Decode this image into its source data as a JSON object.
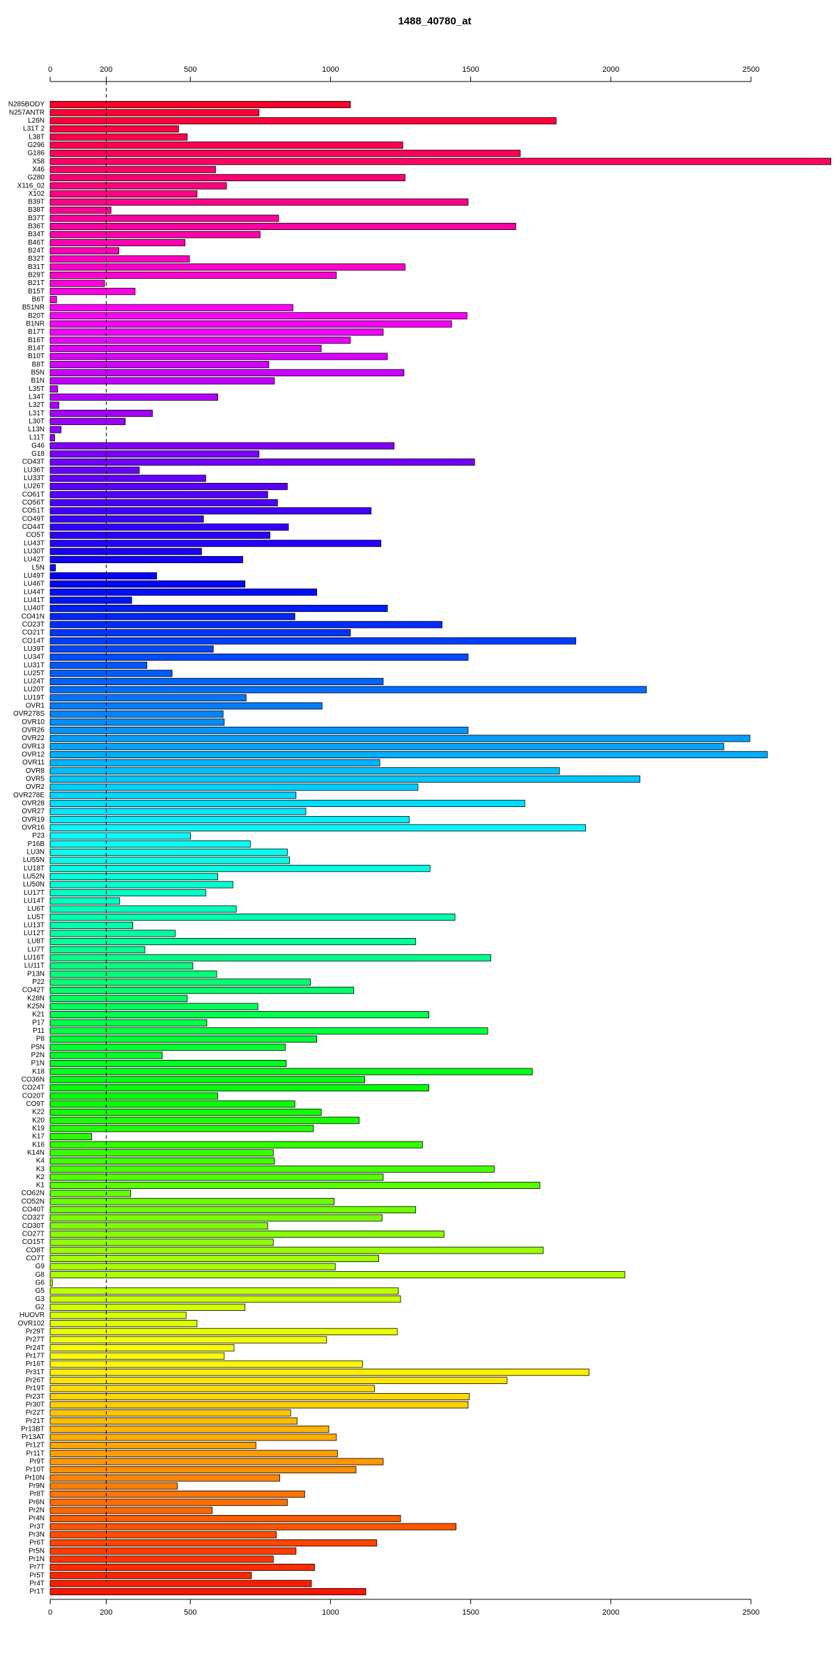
{
  "chart_data": {
    "type": "barh",
    "title": "1488_40780_at",
    "categories": [
      "N285BODY",
      "N257ANTR",
      "L26N",
      "L31T 2",
      "L38T",
      "G296",
      "G186",
      "X58",
      "X46",
      "G280",
      "X116_02",
      "X102",
      "B39T",
      "B38T",
      "B37T",
      "B36T",
      "B34T",
      "B46T",
      "B24T",
      "B32T",
      "B31T",
      "B29T",
      "B21T",
      "B15T",
      "B6T",
      "B51NR",
      "B20T",
      "B1NR",
      "B17T",
      "B16T",
      "B14T",
      "B10T",
      "B8T",
      "B5N",
      "B1N",
      "L35T",
      "L34T",
      "L32T",
      "L31T",
      "L30T",
      "L13N",
      "L11T",
      "G46",
      "G18",
      "CO43T",
      "LU36T",
      "LU33T",
      "LU26T",
      "CO61T",
      "CO56T",
      "CO51T",
      "CO49T",
      "CO44T",
      "CO5T",
      "LU43T",
      "LU30T",
      "LU42T",
      "L5N",
      "LU49T",
      "LU46T",
      "LU44T",
      "LU41T",
      "LU40T",
      "CO41N",
      "CO23T",
      "CO21T",
      "CO14T",
      "LU39T",
      "LU34T",
      "LU31T",
      "LU25T",
      "LU24T",
      "LU20T",
      "LU19T",
      "OVR1",
      "OVR278S",
      "OVR10",
      "OVR26",
      "OVR22",
      "OVR13",
      "OVR12",
      "OVR11",
      "OVR8",
      "OVR5",
      "OVR2",
      "OVR278E",
      "OVR28",
      "OVR27",
      "OVR19",
      "OVR16",
      "P23",
      "P16B",
      "LU3N",
      "LU55N",
      "LU18T",
      "LU52N",
      "LU50N",
      "LU17T",
      "LU14T",
      "LU6T",
      "LU5T",
      "LU13T",
      "LU12T",
      "LU8T",
      "LU7T",
      "LU16T",
      "LU11T",
      "P13N",
      "P22",
      "CO42T",
      "K28N",
      "K25N",
      "K21",
      "P17",
      "P11",
      "P8",
      "P5N",
      "P2N",
      "P1N",
      "K18",
      "CO36N",
      "CO24T",
      "CO20T",
      "CO9T",
      "K22",
      "K20",
      "K19",
      "K17",
      "K16",
      "K14N",
      "K4",
      "K3",
      "K2",
      "K1",
      "CO62N",
      "CO52N",
      "CO40T",
      "CO32T",
      "CO30T",
      "CO27T",
      "CO15T",
      "CO8T",
      "CO7T",
      "G9",
      "G8",
      "G6",
      "G5",
      "G3",
      "G2",
      "HUOVR",
      "OVR102",
      "Pr29T",
      "Pr27T",
      "Pr24T",
      "Pr17T",
      "Pr16T",
      "Pr31T",
      "Pr26T",
      "Pr19T",
      "Pr23T",
      "Pr30T",
      "Pr22T",
      "Pr21T",
      "Pr13BT",
      "Pr13AT",
      "Pr12T",
      "Pr11T",
      "Pr9T",
      "Pr10T",
      "Pr10N",
      "Pr9N",
      "Pr8T",
      "Pr6N",
      "Pr2N",
      "Pr4N",
      "Pr3T",
      "Pr3N",
      "Pr6T",
      "Pr5N",
      "Pr1N",
      "Pr7T",
      "Pr5T",
      "Pr4T",
      "Pr1T"
    ],
    "values": [
      1071,
      745,
      1805,
      458,
      489,
      1258,
      1677,
      2785,
      590,
      1266,
      629,
      524,
      1491,
      217,
      815,
      1661,
      749,
      481,
      245,
      497,
      1266,
      1021,
      194,
      303,
      23,
      866,
      1487,
      1432,
      1188,
      1071,
      967,
      1203,
      780,
      1262,
      800,
      27,
      598,
      31,
      365,
      268,
      39,
      16,
      1227,
      745,
      1514,
      318,
      555,
      846,
      776,
      811,
      1145,
      547,
      850,
      784,
      1180,
      540,
      687,
      19,
      380,
      695,
      951,
      291,
      1203,
      873,
      1398,
      1071,
      1875,
      582,
      1491,
      345,
      435,
      1188,
      2127,
      699,
      970,
      617,
      621,
      1491,
      2496,
      2403,
      2558,
      1176,
      1817,
      2104,
      1312,
      877,
      1693,
      912,
      1281,
      1910,
      501,
      714,
      846,
      854,
      1355,
      598,
      652,
      555,
      248,
      664,
      1444,
      295,
      446,
      1304,
      338,
      1572,
      509,
      594,
      928,
      1083,
      489,
      741,
      1351,
      559,
      1561,
      951,
      839,
      400,
      842,
      1720,
      1122,
      1351,
      598,
      873,
      967,
      1102,
      939,
      148,
      1328,
      796,
      800,
      1584,
      1188,
      1747,
      287,
      1013,
      1304,
      1184,
      776,
      1405,
      796,
      1759,
      1172,
      1017,
      2050,
      8,
      1242,
      1250,
      695,
      485,
      524,
      1238,
      986,
      656,
      621,
      1114,
      1922,
      1630,
      1157,
      1495,
      1491,
      858,
      881,
      994,
      1021,
      734,
      1025,
      1188,
      1091,
      819,
      454,
      908,
      846,
      578,
      1250,
      1448,
      807,
      1165,
      877,
      796,
      943,
      718,
      932,
      1126
    ],
    "palette": "rainbow",
    "xlim": [
      0,
      2790
    ],
    "xticks": [
      0,
      200,
      500,
      1000,
      1500,
      2000,
      2500
    ],
    "reference_line": 200
  }
}
